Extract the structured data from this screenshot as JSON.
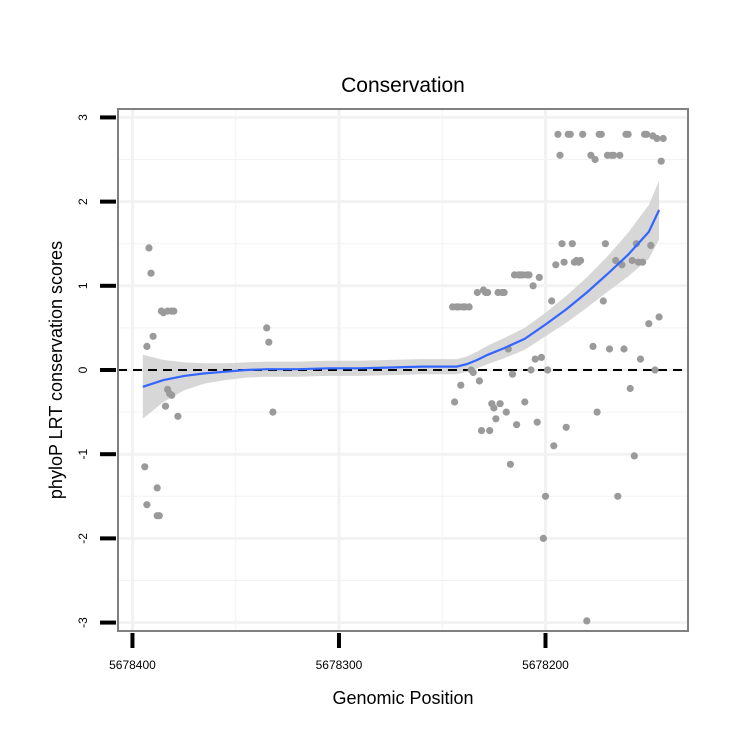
{
  "chart_data": {
    "type": "scatter",
    "title": "Conservation",
    "xlabel": "Genomic Position",
    "ylabel": "phyloP LRT conservation scores",
    "x_reversed": true,
    "xlim": [
      5678407,
      5678131
    ],
    "ylim": [
      -3.1,
      3.1
    ],
    "x_ticks": [
      5678400,
      5678300,
      5678200
    ],
    "x_tick_labels": [
      "5678400",
      "5678300",
      "5678200"
    ],
    "y_ticks": [
      -3,
      -2,
      -1,
      0,
      1,
      2,
      3
    ],
    "y_tick_labels": [
      "-3",
      "-2",
      "-1",
      "0",
      "1",
      "2",
      "3"
    ],
    "reference_line_y": 0,
    "colors": {
      "points": "#9a9a9a",
      "smooth_line": "#3366ff",
      "confidence_band": "#d3d3d3",
      "reference_line": "#000000",
      "panel_border": "#808080",
      "grid": "#f2f2f2"
    },
    "points": [
      [
        5678394,
        -1.15
      ],
      [
        5678393,
        -1.6
      ],
      [
        5678393,
        0.28
      ],
      [
        5678392,
        1.45
      ],
      [
        5678391,
        1.15
      ],
      [
        5678390,
        0.4
      ],
      [
        5678388,
        -1.4
      ],
      [
        5678388,
        -1.73
      ],
      [
        5678387,
        -1.73
      ],
      [
        5678386,
        0.7
      ],
      [
        5678385,
        0.68
      ],
      [
        5678384,
        -0.43
      ],
      [
        5678383,
        -0.23
      ],
      [
        5678383,
        0.7
      ],
      [
        5678382,
        -0.28
      ],
      [
        5678381,
        -0.3
      ],
      [
        5678381,
        0.7
      ],
      [
        5678380,
        0.7
      ],
      [
        5678378,
        -0.55
      ],
      [
        5678335,
        0.5
      ],
      [
        5678334,
        0.33
      ],
      [
        5678332,
        -0.5
      ],
      [
        5678245,
        0.75
      ],
      [
        5678244,
        -0.38
      ],
      [
        5678243,
        0.75
      ],
      [
        5678242,
        0.75
      ],
      [
        5678241,
        -0.18
      ],
      [
        5678240,
        0.75
      ],
      [
        5678239,
        0.75
      ],
      [
        5678237,
        0.75
      ],
      [
        5678236,
        0.0
      ],
      [
        5678235,
        -0.03
      ],
      [
        5678233,
        0.92
      ],
      [
        5678232,
        -0.13
      ],
      [
        5678231,
        -0.72
      ],
      [
        5678230,
        0.95
      ],
      [
        5678229,
        0.92
      ],
      [
        5678228,
        0.92
      ],
      [
        5678227,
        -0.72
      ],
      [
        5678226,
        -0.4
      ],
      [
        5678225,
        -0.45
      ],
      [
        5678224,
        -0.58
      ],
      [
        5678223,
        0.92
      ],
      [
        5678222,
        -0.4
      ],
      [
        5678221,
        0.92
      ],
      [
        5678220,
        0.92
      ],
      [
        5678219,
        -0.5
      ],
      [
        5678218,
        0.25
      ],
      [
        5678217,
        -1.12
      ],
      [
        5678216,
        -0.05
      ],
      [
        5678215,
        1.13
      ],
      [
        5678214,
        -0.65
      ],
      [
        5678213,
        1.13
      ],
      [
        5678212,
        1.13
      ],
      [
        5678211,
        1.13
      ],
      [
        5678210,
        -0.38
      ],
      [
        5678209,
        1.13
      ],
      [
        5678208,
        1.13
      ],
      [
        5678207,
        0.0
      ],
      [
        5678206,
        1.0
      ],
      [
        5678205,
        0.13
      ],
      [
        5678204,
        -0.62
      ],
      [
        5678203,
        1.1
      ],
      [
        5678202,
        0.15
      ],
      [
        5678201,
        -2.0
      ],
      [
        5678200,
        -1.5
      ],
      [
        5678199,
        0.0
      ],
      [
        5678197,
        0.82
      ],
      [
        5678196,
        -0.9
      ],
      [
        5678195,
        1.25
      ],
      [
        5678194,
        2.8
      ],
      [
        5678193,
        2.55
      ],
      [
        5678192,
        1.5
      ],
      [
        5678191,
        1.28
      ],
      [
        5678190,
        -0.68
      ],
      [
        5678189,
        2.8
      ],
      [
        5678188,
        2.8
      ],
      [
        5678187,
        1.5
      ],
      [
        5678186,
        1.28
      ],
      [
        5678185,
        1.3
      ],
      [
        5678184,
        1.28
      ],
      [
        5678183,
        1.3
      ],
      [
        5678182,
        2.8
      ],
      [
        5678180,
        -2.98
      ],
      [
        5678178,
        2.55
      ],
      [
        5678177,
        0.28
      ],
      [
        5678176,
        2.5
      ],
      [
        5678175,
        -0.5
      ],
      [
        5678174,
        2.8
      ],
      [
        5678173,
        2.8
      ],
      [
        5678172,
        0.82
      ],
      [
        5678171,
        1.5
      ],
      [
        5678170,
        2.55
      ],
      [
        5678169,
        0.25
      ],
      [
        5678168,
        2.55
      ],
      [
        5678167,
        2.55
      ],
      [
        5678166,
        1.3
      ],
      [
        5678165,
        -1.5
      ],
      [
        5678164,
        2.55
      ],
      [
        5678163,
        1.25
      ],
      [
        5678162,
        0.25
      ],
      [
        5678161,
        2.8
      ],
      [
        5678160,
        2.8
      ],
      [
        5678159,
        -0.22
      ],
      [
        5678158,
        1.3
      ],
      [
        5678157,
        -1.02
      ],
      [
        5678156,
        1.5
      ],
      [
        5678155,
        1.28
      ],
      [
        5678154,
        0.13
      ],
      [
        5678153,
        1.28
      ],
      [
        5678152,
        2.8
      ],
      [
        5678151,
        2.8
      ],
      [
        5678150,
        0.55
      ],
      [
        5678149,
        1.48
      ],
      [
        5678148,
        2.78
      ],
      [
        5678147,
        0.0
      ],
      [
        5678146,
        2.75
      ],
      [
        5678145,
        0.63
      ],
      [
        5678144,
        2.48
      ],
      [
        5678143,
        2.75
      ]
    ],
    "smooth_line": [
      [
        5678395,
        -0.2
      ],
      [
        5678385,
        -0.12
      ],
      [
        5678375,
        -0.07
      ],
      [
        5678365,
        -0.04
      ],
      [
        5678355,
        -0.02
      ],
      [
        5678345,
        0.0
      ],
      [
        5678335,
        0.01
      ],
      [
        5678320,
        0.01
      ],
      [
        5678305,
        0.02
      ],
      [
        5678290,
        0.02
      ],
      [
        5678275,
        0.03
      ],
      [
        5678260,
        0.04
      ],
      [
        5678250,
        0.04
      ],
      [
        5678243,
        0.04
      ],
      [
        5678238,
        0.07
      ],
      [
        5678233,
        0.12
      ],
      [
        5678228,
        0.18
      ],
      [
        5678220,
        0.26
      ],
      [
        5678210,
        0.37
      ],
      [
        5678200,
        0.54
      ],
      [
        5678190,
        0.72
      ],
      [
        5678180,
        0.92
      ],
      [
        5678170,
        1.14
      ],
      [
        5678160,
        1.37
      ],
      [
        5678150,
        1.64
      ],
      [
        5678145,
        1.9
      ]
    ],
    "confidence_upper": [
      [
        5678395,
        0.18
      ],
      [
        5678385,
        0.12
      ],
      [
        5678375,
        0.09
      ],
      [
        5678365,
        0.08
      ],
      [
        5678355,
        0.08
      ],
      [
        5678345,
        0.09
      ],
      [
        5678335,
        0.1
      ],
      [
        5678320,
        0.1
      ],
      [
        5678305,
        0.11
      ],
      [
        5678290,
        0.11
      ],
      [
        5678275,
        0.12
      ],
      [
        5678260,
        0.13
      ],
      [
        5678250,
        0.13
      ],
      [
        5678243,
        0.13
      ],
      [
        5678238,
        0.16
      ],
      [
        5678233,
        0.22
      ],
      [
        5678228,
        0.29
      ],
      [
        5678220,
        0.38
      ],
      [
        5678210,
        0.5
      ],
      [
        5678200,
        0.68
      ],
      [
        5678190,
        0.88
      ],
      [
        5678180,
        1.1
      ],
      [
        5678170,
        1.35
      ],
      [
        5678160,
        1.63
      ],
      [
        5678150,
        1.96
      ],
      [
        5678145,
        2.25
      ]
    ],
    "confidence_lower": [
      [
        5678395,
        -0.58
      ],
      [
        5678385,
        -0.38
      ],
      [
        5678375,
        -0.24
      ],
      [
        5678365,
        -0.16
      ],
      [
        5678355,
        -0.12
      ],
      [
        5678345,
        -0.09
      ],
      [
        5678335,
        -0.08
      ],
      [
        5678320,
        -0.08
      ],
      [
        5678305,
        -0.07
      ],
      [
        5678290,
        -0.07
      ],
      [
        5678275,
        -0.06
      ],
      [
        5678260,
        -0.05
      ],
      [
        5678250,
        -0.05
      ],
      [
        5678243,
        -0.05
      ],
      [
        5678238,
        -0.02
      ],
      [
        5678233,
        0.02
      ],
      [
        5678228,
        0.07
      ],
      [
        5678220,
        0.14
      ],
      [
        5678210,
        0.24
      ],
      [
        5678200,
        0.4
      ],
      [
        5678190,
        0.56
      ],
      [
        5678180,
        0.74
      ],
      [
        5678170,
        0.93
      ],
      [
        5678160,
        1.11
      ],
      [
        5678150,
        1.32
      ],
      [
        5678145,
        1.55
      ]
    ]
  }
}
